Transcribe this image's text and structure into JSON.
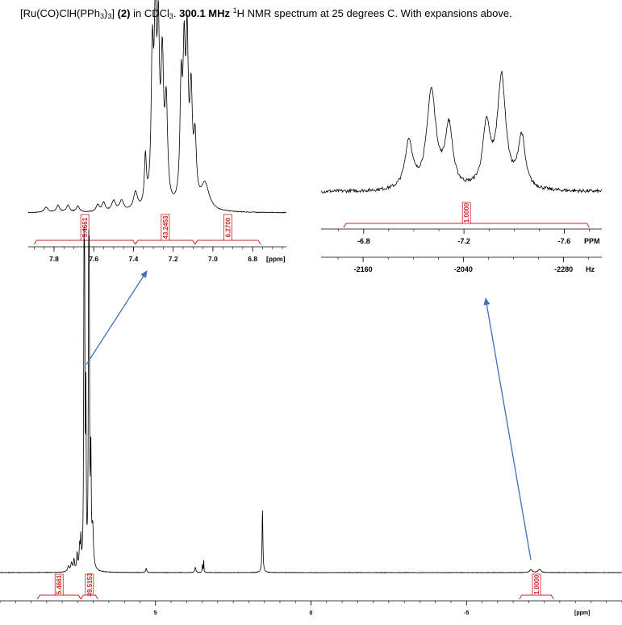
{
  "caption": {
    "formula_prefix": "[Ru(CO)ClH(PPh",
    "formula_sub1": "3",
    "formula_mid": ")",
    "formula_sub2": "3",
    "formula_suffix": "]",
    "compound_num": "(2)",
    "solvent_text": " in CDCl",
    "solvent_sub": "3",
    "period": ". ",
    "freq": "300.1 MHz",
    "nucleus_sup": "1",
    "rest": "H NMR spectrum at 25 degrees C.  With expansions above."
  },
  "colors": {
    "arrow": "#3f6fbf",
    "integral": "#cc2222",
    "spectrum": "#000000"
  },
  "chart_data": [
    {
      "id": "aromatic-expansion",
      "type": "line",
      "x_unit_label": "[ppm]",
      "xlim": [
        7.93,
        6.63
      ],
      "ticks": [
        "7.8",
        "7.6",
        "7.4",
        "7.2",
        "7.0",
        "6.8"
      ],
      "peaks_ppm": [
        {
          "x": 7.84,
          "h": 0.03,
          "w": 0.012
        },
        {
          "x": 7.78,
          "h": 0.04,
          "w": 0.01
        },
        {
          "x": 7.73,
          "h": 0.04,
          "w": 0.01
        },
        {
          "x": 7.68,
          "h": 0.035,
          "w": 0.01
        },
        {
          "x": 7.58,
          "h": 0.04,
          "w": 0.01
        },
        {
          "x": 7.55,
          "h": 0.05,
          "w": 0.01
        },
        {
          "x": 7.5,
          "h": 0.06,
          "w": 0.012
        },
        {
          "x": 7.46,
          "h": 0.06,
          "w": 0.012
        },
        {
          "x": 7.39,
          "h": 0.1,
          "w": 0.012
        },
        {
          "x": 7.34,
          "h": 0.28,
          "w": 0.006
        },
        {
          "x": 7.305,
          "h": 0.82,
          "w": 0.007
        },
        {
          "x": 7.29,
          "h": 0.95,
          "w": 0.007
        },
        {
          "x": 7.275,
          "h": 0.88,
          "w": 0.007
        },
        {
          "x": 7.255,
          "h": 0.78,
          "w": 0.008
        },
        {
          "x": 7.235,
          "h": 0.55,
          "w": 0.008
        },
        {
          "x": 7.16,
          "h": 0.65,
          "w": 0.007
        },
        {
          "x": 7.145,
          "h": 0.78,
          "w": 0.007
        },
        {
          "x": 7.13,
          "h": 0.86,
          "w": 0.007
        },
        {
          "x": 7.11,
          "h": 0.6,
          "w": 0.008
        },
        {
          "x": 7.09,
          "h": 0.35,
          "w": 0.008
        },
        {
          "x": 7.04,
          "h": 0.15,
          "w": 0.025
        }
      ],
      "integrals": [
        {
          "from": 7.9,
          "to": 7.39,
          "value": "5.4661"
        },
        {
          "from": 7.39,
          "to": 7.09,
          "value": "43.2453"
        },
        {
          "from": 7.09,
          "to": 6.76,
          "value": "6.2700"
        }
      ]
    },
    {
      "id": "hydride-expansion",
      "type": "line",
      "x_unit_label": "PPM",
      "x2_unit_label": "Hz",
      "xlim": [
        -6.63,
        -7.75
      ],
      "ticks": [
        "-6.8",
        "-7.2",
        "-7.6"
      ],
      "hz_ticks": [
        "-2160",
        "-2040",
        "-2280"
      ],
      "hz_tick_values": [
        -2160,
        -2040,
        -2280
      ],
      "peaks_ppm": [
        {
          "x": -6.98,
          "h": 0.35,
          "w": 0.018
        },
        {
          "x": -7.07,
          "h": 0.72,
          "w": 0.022
        },
        {
          "x": -7.14,
          "h": 0.45,
          "w": 0.018
        },
        {
          "x": -7.29,
          "h": 0.45,
          "w": 0.018
        },
        {
          "x": -7.35,
          "h": 0.82,
          "w": 0.02
        },
        {
          "x": -7.43,
          "h": 0.38,
          "w": 0.017
        }
      ],
      "integrals": [
        {
          "from": -6.72,
          "to": -7.7,
          "value": "1.0000"
        }
      ]
    },
    {
      "id": "full-spectrum",
      "type": "line",
      "x_unit_label": "[ppm]",
      "xlim": [
        10.0,
        -10.0
      ],
      "ticks": [
        "5",
        "0",
        "-5"
      ],
      "peaks_ppm": [
        {
          "x": 7.8,
          "h": 0.02,
          "w": 0.03
        },
        {
          "x": 7.7,
          "h": 0.03,
          "w": 0.03
        },
        {
          "x": 7.62,
          "h": 0.04,
          "w": 0.02
        },
        {
          "x": 7.52,
          "h": 0.06,
          "w": 0.02
        },
        {
          "x": 7.44,
          "h": 0.08,
          "w": 0.02
        },
        {
          "x": 7.4,
          "h": 0.1,
          "w": 0.015
        },
        {
          "x": 7.3,
          "h": 0.98,
          "w": 0.012
        },
        {
          "x": 7.28,
          "h": 0.9,
          "w": 0.012
        },
        {
          "x": 7.24,
          "h": 0.6,
          "w": 0.012
        },
        {
          "x": 7.15,
          "h": 0.97,
          "w": 0.012
        },
        {
          "x": 7.13,
          "h": 0.9,
          "w": 0.012
        },
        {
          "x": 7.08,
          "h": 0.4,
          "w": 0.015
        },
        {
          "x": 7.02,
          "h": 0.14,
          "w": 0.03
        },
        {
          "x": 5.3,
          "h": 0.015,
          "w": 0.02
        },
        {
          "x": 3.72,
          "h": 0.02,
          "w": 0.02
        },
        {
          "x": 3.49,
          "h": 0.03,
          "w": 0.01
        },
        {
          "x": 3.45,
          "h": 0.05,
          "w": 0.008
        },
        {
          "x": 1.56,
          "h": 0.23,
          "w": 0.015
        },
        {
          "x": -7.07,
          "h": 0.01,
          "w": 0.05
        },
        {
          "x": -7.35,
          "h": 0.012,
          "w": 0.05
        }
      ],
      "integrals": [
        {
          "from": 8.8,
          "to": 7.4,
          "value": "5.4661"
        },
        {
          "from": 7.4,
          "to": 6.85,
          "value": "49.5153"
        },
        {
          "from": -6.7,
          "to": -7.8,
          "value": "1.0000"
        }
      ]
    }
  ]
}
